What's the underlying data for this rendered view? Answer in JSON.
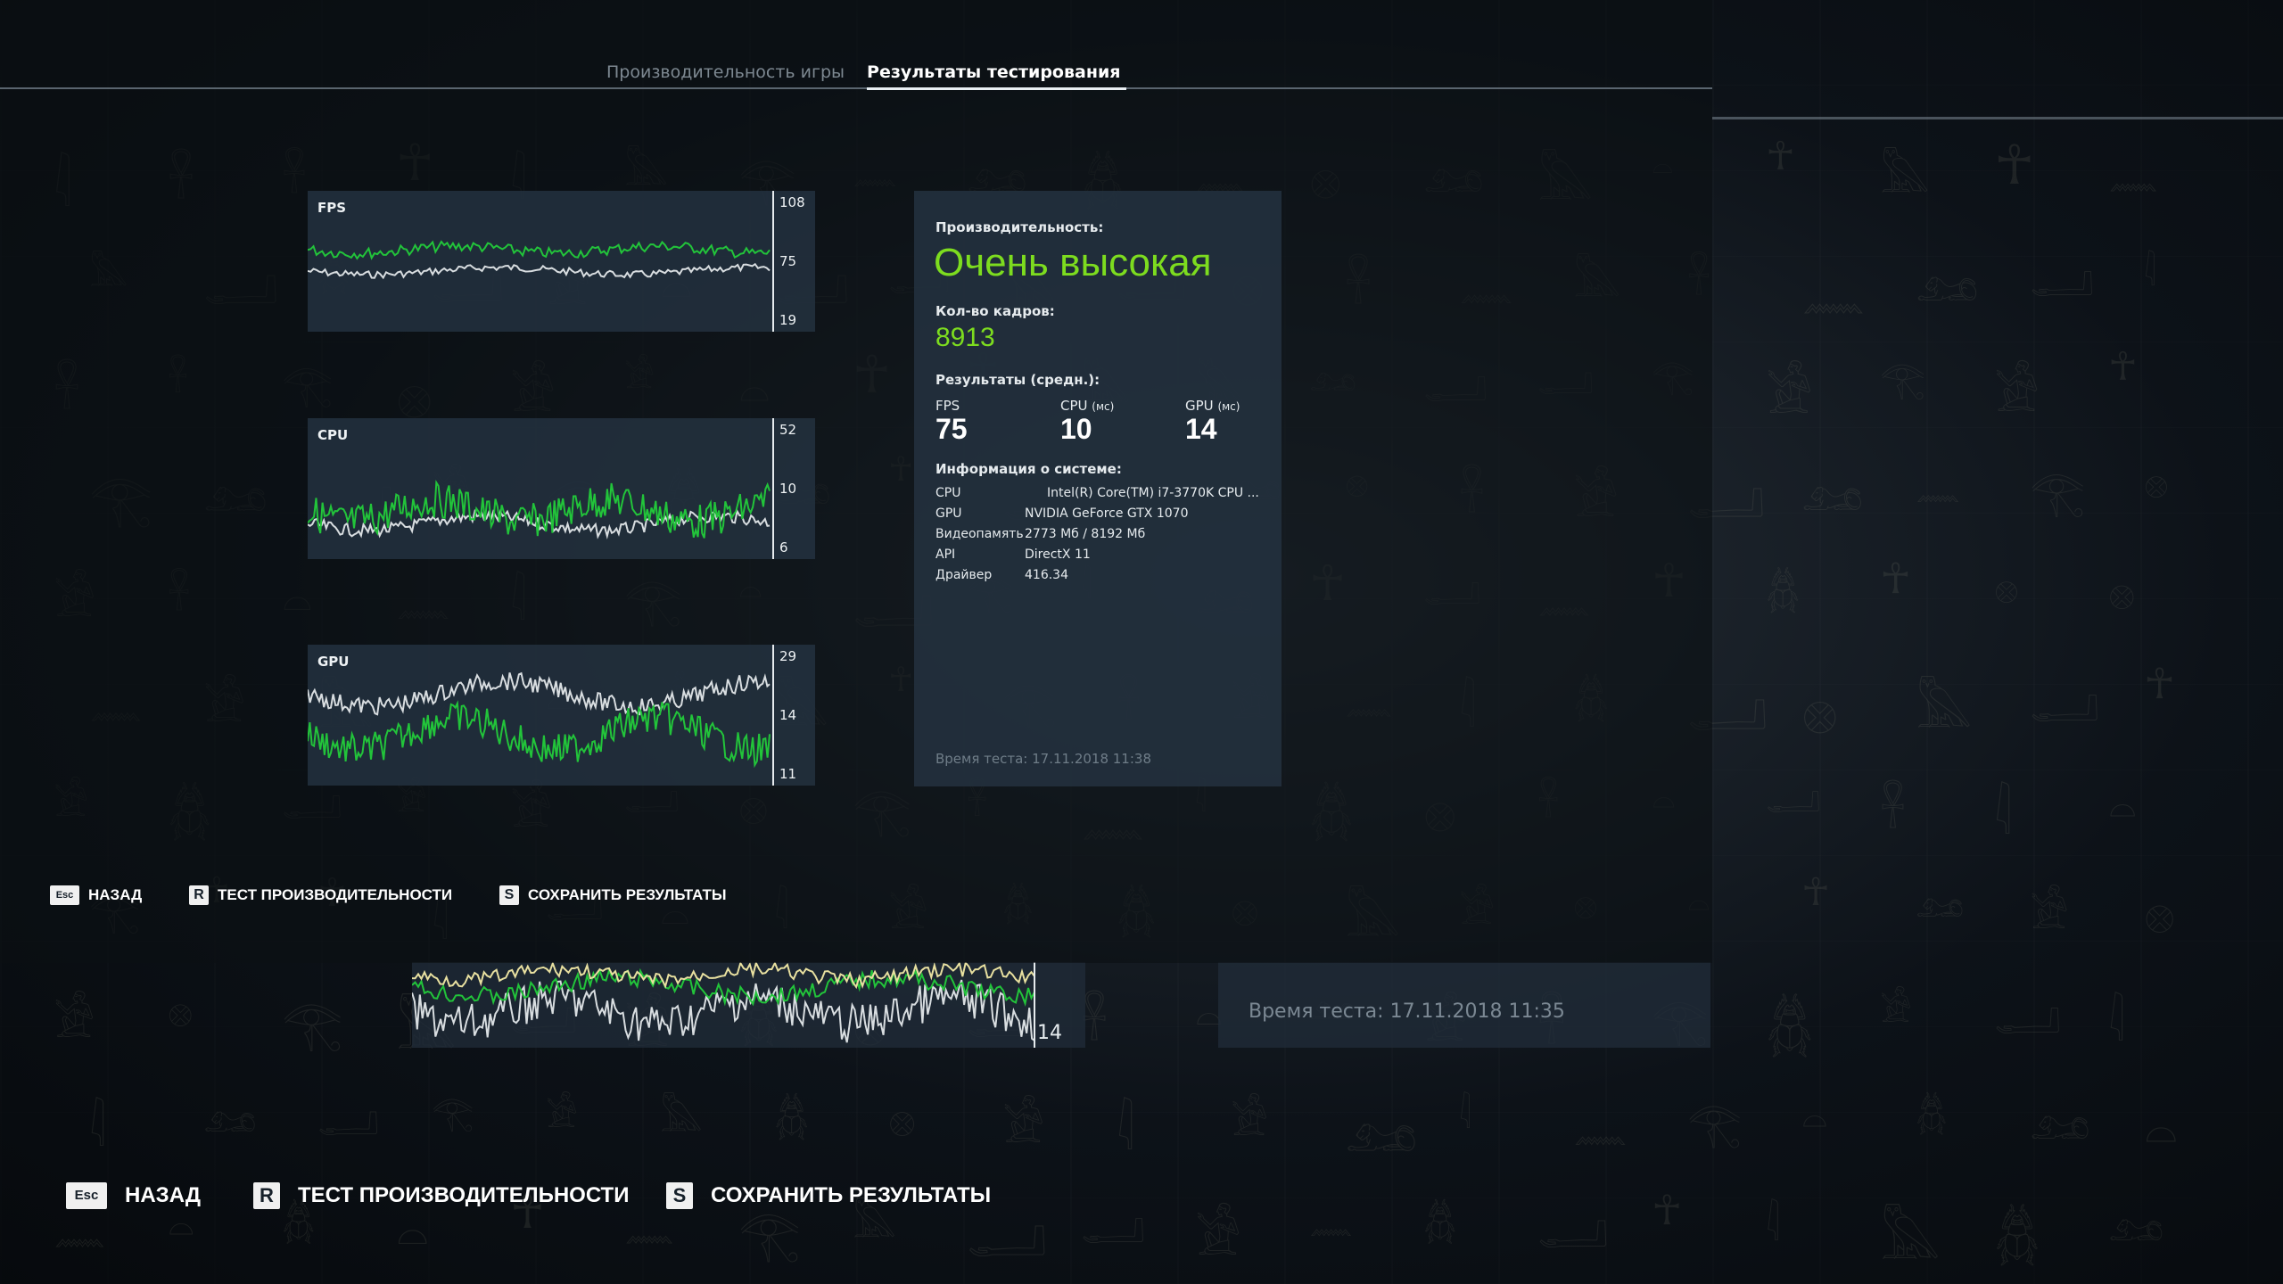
{
  "tabs": [
    {
      "label": "Производительность игры",
      "active": false
    },
    {
      "label": "Результаты тестирования",
      "active": true
    }
  ],
  "charts": {
    "fps": {
      "name": "FPS",
      "ticks": [
        "108",
        "75",
        "19"
      ]
    },
    "cpu": {
      "name": "CPU",
      "ticks": [
        "52",
        "10",
        "6"
      ]
    },
    "gpu": {
      "name": "GPU",
      "ticks": [
        "29",
        "14",
        "11"
      ]
    }
  },
  "results": {
    "perf_label": "Производительность:",
    "perf_value": "Очень высокая",
    "frames_label": "Кол-во кадров:",
    "frames_value": "8913",
    "avg_label": "Результаты (средн.):",
    "avg": [
      {
        "name": "FPS",
        "unit": "",
        "value": "75"
      },
      {
        "name": "CPU",
        "unit": "(мс)",
        "value": "10"
      },
      {
        "name": "GPU",
        "unit": "(мс)",
        "value": "14"
      }
    ],
    "sys_label": "Информация о системе:",
    "sys": [
      {
        "key": "CPU",
        "value": "Intel(R) Core(TM) i7-3770K CPU ..."
      },
      {
        "key": "GPU",
        "value": "NVIDIA GeForce GTX 1070"
      },
      {
        "key": "Видеопамять",
        "value": "2773 Мб / 8192 Мб"
      },
      {
        "key": "API",
        "value": "DirectX 11"
      },
      {
        "key": "Драйвер",
        "value": "416.34"
      }
    ],
    "test_time": "Время теста: 17.11.2018 11:38"
  },
  "footer": {
    "back_key": "Esc",
    "back_label": "НАЗАД",
    "bench_key": "R",
    "bench_label": "ТЕСТ ПРОИЗВОДИТЕЛЬНОСТИ",
    "save_key": "S",
    "save_label": "СОХРАНИТЬ РЕЗУЛЬТАТЫ"
  },
  "background_layer": {
    "chart_tick": "14",
    "test_time": "Время теста: 17.11.2018 11:35",
    "back_key": "Esc",
    "back_label": "НАЗАД",
    "bench_key": "R",
    "bench_label": "ТЕСТ ПРОИЗВОДИТЕЛЬНОСТИ",
    "save_key": "S",
    "save_label": "СОХРАНИТЬ РЕЗУЛЬТАТЫ"
  },
  "colors": {
    "accent_green": "#7ddc1f",
    "series_green": "#22c43a",
    "series_white": "#d8dde0",
    "series_yellow": "#e8e0a0",
    "panel": "#23313f"
  }
}
